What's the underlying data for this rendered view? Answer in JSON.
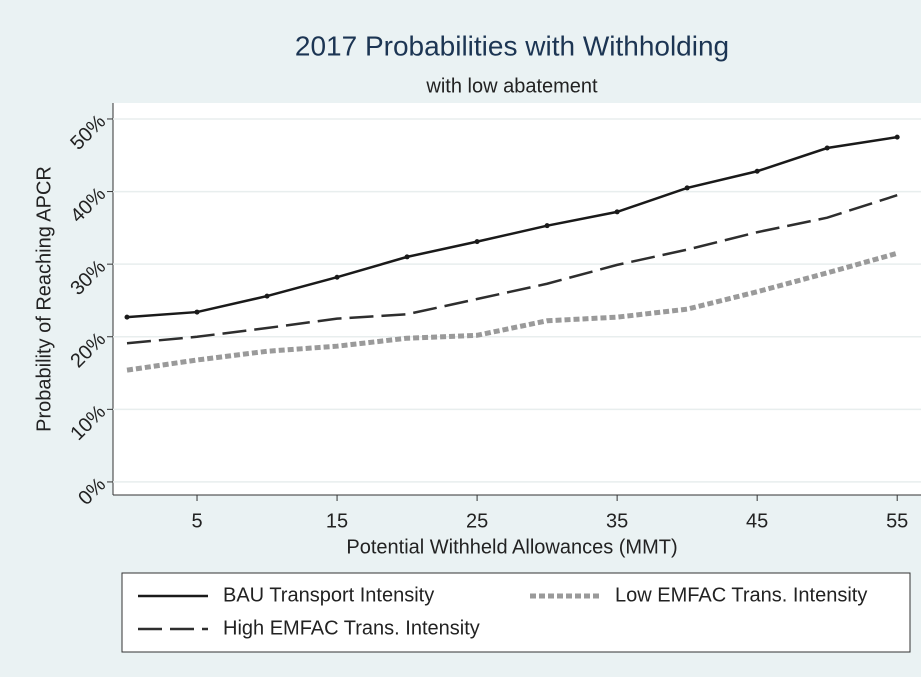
{
  "chart_data": {
    "type": "line",
    "title": "2017 Probabilities with Withholding",
    "subtitle": "with low abatement",
    "x_label": "Potential Withheld Allowances (MMT)",
    "y_label": "Probability of Reaching APCR",
    "x": [
      0,
      5,
      10,
      15,
      20,
      25,
      30,
      35,
      40,
      45,
      50,
      55
    ],
    "series": [
      {
        "name": "BAU Transport Intensity",
        "color": "#1a1a1a",
        "line_style": "solid",
        "markers": true,
        "values": [
          22.7,
          23.4,
          25.6,
          28.2,
          31.0,
          33.1,
          35.3,
          37.2,
          40.5,
          42.8,
          46.0,
          47.5
        ]
      },
      {
        "name": "High EMFAC Trans. Intensity",
        "color": "#2e2e2e",
        "line_style": "dash",
        "markers": false,
        "values": [
          19.1,
          20.0,
          21.2,
          22.5,
          23.1,
          25.2,
          27.3,
          29.9,
          32.0,
          34.4,
          36.4,
          39.5
        ]
      },
      {
        "name": "Low EMFAC Trans. Intensity",
        "color": "#9a9a9a",
        "line_style": "dot",
        "markers": false,
        "values": [
          15.4,
          16.8,
          18.0,
          18.7,
          19.8,
          20.2,
          22.2,
          22.7,
          23.8,
          26.2,
          28.8,
          31.5
        ]
      }
    ],
    "xlim": [
      -1,
      56.7
    ],
    "ylim": [
      -1.8,
      52.2
    ],
    "xticks": [
      5,
      15,
      25,
      35,
      45,
      55
    ],
    "yticks": [
      {
        "value": 0,
        "label": "0%"
      },
      {
        "value": 10,
        "label": "10%"
      },
      {
        "value": 20,
        "label": "20%"
      },
      {
        "value": 30,
        "label": "30%"
      },
      {
        "value": 40,
        "label": "40%"
      },
      {
        "value": 50,
        "label": "50%"
      }
    ],
    "grid": true,
    "legend_position": "bottom"
  }
}
